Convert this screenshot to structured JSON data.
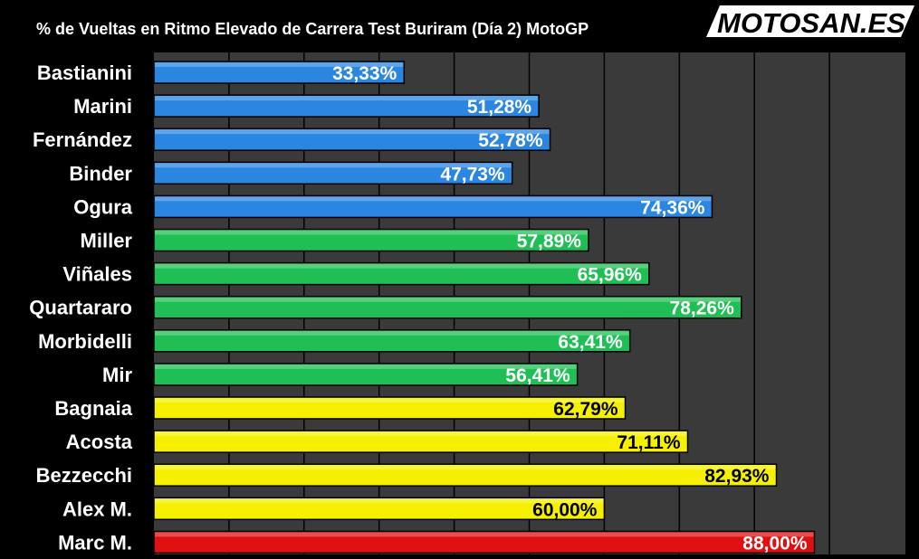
{
  "chart_data": {
    "type": "bar",
    "orientation": "horizontal",
    "title": "% de Vueltas en Ritmo Elevado de Carrera Test Buriram (Día 2) MotoGP",
    "xlim": [
      0,
      100
    ],
    "grid": true,
    "legend": "none",
    "categories": [
      "Bastianini",
      "Marini",
      "Fernández",
      "Binder",
      "Ogura",
      "Miller",
      "Viñales",
      "Quartararo",
      "Morbidelli",
      "Mir",
      "Bagnaia",
      "Acosta",
      "Bezzecchi",
      "Alex M.",
      "Marc M."
    ],
    "values": [
      33.33,
      51.28,
      52.78,
      47.73,
      74.36,
      57.89,
      65.96,
      78.26,
      63.41,
      56.41,
      62.79,
      71.11,
      82.93,
      60.0,
      88.0
    ],
    "value_labels": [
      "33,33%",
      "51,28%",
      "52,78%",
      "47,73%",
      "74,36%",
      "57,89%",
      "65,96%",
      "78,26%",
      "63,41%",
      "56,41%",
      "62,79%",
      "71,11%",
      "82,93%",
      "60,00%",
      "88,00%"
    ],
    "bar_colors": [
      "#2a86e0",
      "#2a86e0",
      "#2a86e0",
      "#2a86e0",
      "#2a86e0",
      "#1fbf55",
      "#1fbf55",
      "#1fbf55",
      "#1fbf55",
      "#1fbf55",
      "#f5f000",
      "#f5f000",
      "#f5f000",
      "#f5f000",
      "#e01010"
    ],
    "label_colors": [
      "#ffffff",
      "#ffffff",
      "#ffffff",
      "#ffffff",
      "#ffffff",
      "#ffffff",
      "#ffffff",
      "#ffffff",
      "#ffffff",
      "#ffffff",
      "#000000",
      "#000000",
      "#000000",
      "#000000",
      "#ffffff"
    ]
  },
  "logo": {
    "text": "MOTOSAN.ES",
    "text_color": "#000000",
    "background_color": "#ffffff",
    "accent_color": "#e01010"
  },
  "colors": {
    "background": "#000000",
    "plot_background": "#3a3a3a",
    "gridline": "#000000"
  }
}
